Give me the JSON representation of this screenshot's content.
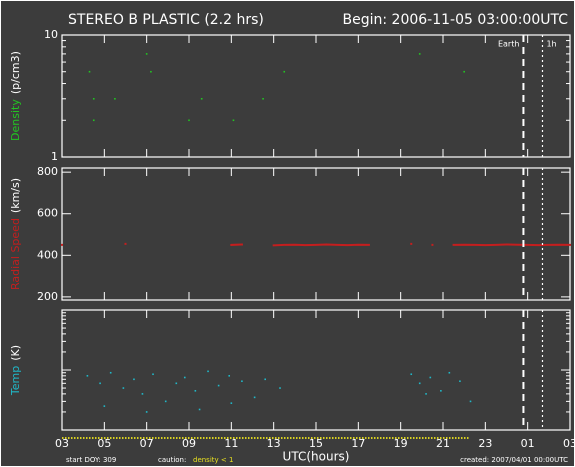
{
  "header": {
    "title": "STEREO B PLASTIC (2.2 hrs)",
    "begin": "Begin: 2006-11-05 03:00:00UTC"
  },
  "footer": {
    "start": "start DOY: 309",
    "caution": "caution:",
    "caution_note": "density < 1",
    "created": "created: 2007/04/01 00:00UTC"
  },
  "markers": [
    {
      "x": 24.8,
      "label": "Earth"
    },
    {
      "x": 25.7,
      "label": "1h"
    }
  ],
  "chart_data": [
    {
      "type": "scatter",
      "ylabel": "Density",
      "yunit": "(p/cm3)",
      "color": "#22c422",
      "log_y": true,
      "ylim": [
        1,
        10
      ],
      "yticks": [
        1,
        10
      ],
      "x": [
        4.3,
        7.2,
        13.5,
        22.0,
        4.5,
        5.5,
        9.6,
        12.5,
        4.5,
        9.0,
        11.1,
        19.9,
        7.0
      ],
      "values": [
        5,
        5,
        5,
        5,
        3,
        3,
        3,
        3,
        2,
        2,
        2,
        7,
        7
      ]
    },
    {
      "type": "line",
      "ylabel": "Radial Speed",
      "yunit": "(km/s)",
      "color": "#c41e1e",
      "ylim": [
        185,
        820
      ],
      "yticks": [
        200,
        400,
        600,
        800
      ],
      "x": [
        3,
        3.5,
        4,
        4.5,
        5,
        5.5,
        6,
        6.5,
        7,
        7.5,
        8,
        8.5,
        9,
        9.5,
        10,
        10.5,
        11,
        11.5,
        12,
        12.5,
        13,
        13.5,
        14,
        14.5,
        15,
        15.5,
        16,
        16.5,
        17,
        17.5,
        18,
        18.5,
        19,
        19.5,
        20,
        20.5,
        21,
        21.5,
        22,
        22.5,
        23,
        23.5,
        24,
        24.5,
        25,
        25.5,
        26,
        26.5,
        27
      ],
      "values": [
        450,
        null,
        null,
        null,
        null,
        null,
        455,
        null,
        null,
        null,
        null,
        null,
        null,
        null,
        null,
        null,
        450,
        452,
        null,
        null,
        448,
        450,
        451,
        449,
        450,
        452,
        450,
        449,
        451,
        450,
        null,
        null,
        null,
        455,
        null,
        450,
        null,
        450,
        451,
        450,
        449,
        450,
        452,
        451,
        450,
        449,
        450,
        451,
        450
      ]
    },
    {
      "type": "scatter",
      "ylabel": "Temp",
      "yunit": "(K)",
      "color": "#20b8c8",
      "log_y": true,
      "ylim": [
        10000,
        1000000
      ],
      "yticks": [
        10000,
        100000,
        1000000
      ],
      "x": [
        4.2,
        4.8,
        5.3,
        5.9,
        6.4,
        6.8,
        7.3,
        7.9,
        8.4,
        8.8,
        9.3,
        9.9,
        10.4,
        10.9,
        11.5,
        12.1,
        12.6,
        13.3,
        19.5,
        19.9,
        20.4,
        20.9,
        21.3,
        21.8,
        22.3,
        5.0,
        7.0,
        9.5,
        11.0,
        20.2
      ],
      "values": [
        80000,
        60000,
        90000,
        50000,
        70000,
        40000,
        85000,
        30000,
        60000,
        75000,
        45000,
        95000,
        55000,
        80000,
        65000,
        35000,
        70000,
        50000,
        85000,
        60000,
        75000,
        45000,
        90000,
        65000,
        30000,
        25000,
        20000,
        22000,
        28000,
        40000
      ],
      "xlabel": "UTC(hours)",
      "xlim": [
        3,
        27
      ],
      "xticks": [
        {
          "value": 3,
          "label": "03"
        },
        {
          "value": 5,
          "label": "05"
        },
        {
          "value": 7,
          "label": "07"
        },
        {
          "value": 9,
          "label": "09"
        },
        {
          "value": 11,
          "label": "11"
        },
        13,
        15,
        17,
        19,
        21,
        23,
        {
          "value": 25,
          "label": "01"
        },
        {
          "value": 27,
          "label": "03"
        }
      ]
    }
  ]
}
